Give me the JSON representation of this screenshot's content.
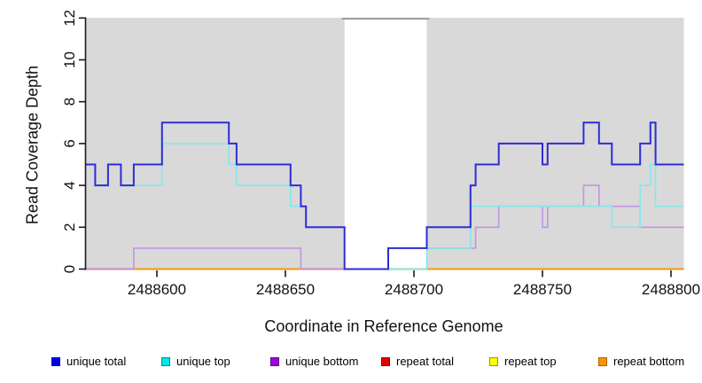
{
  "figure": {
    "y_axis_title": "Read Coverage Depth",
    "x_axis_title": "Coordinate in Reference Genome"
  },
  "legend": [
    {
      "label": "unique total",
      "fill": "#0000e6",
      "border": "#000099"
    },
    {
      "label": "unique top",
      "fill": "#00e6e6",
      "border": "#008b8b"
    },
    {
      "label": "unique bottom",
      "fill": "#a100d9",
      "border": "#60008a"
    },
    {
      "label": "repeat total",
      "fill": "#e60000",
      "border": "#8b0000"
    },
    {
      "label": "repeat top",
      "fill": "#ffff00",
      "border": "#9a9a00"
    },
    {
      "label": "repeat bottom",
      "fill": "#ff9300",
      "border": "#b36200"
    }
  ],
  "chart_data": {
    "type": "line",
    "subtype": "step-coverage-plot",
    "title": "",
    "xlabel": "Coordinate in Reference Genome",
    "ylabel": "Read Coverage Depth",
    "xlim": [
      2488572,
      2488805
    ],
    "ylim": [
      0,
      12
    ],
    "x_ticks": [
      2488600,
      2488650,
      2488700,
      2488750,
      2488800
    ],
    "y_ticks": [
      0,
      2,
      4,
      6,
      8,
      10,
      12
    ],
    "grid": false,
    "plot_bg_color": "#d9d9d9",
    "legend_position": "bottom",
    "series": [
      {
        "name": "unique total",
        "color": "#2d2dd6",
        "width": 2.0,
        "steps": [
          [
            2488572,
            2488576,
            5
          ],
          [
            2488576,
            2488581,
            4
          ],
          [
            2488581,
            2488586,
            5
          ],
          [
            2488586,
            2488591,
            4
          ],
          [
            2488591,
            2488602,
            5
          ],
          [
            2488602,
            2488628,
            7
          ],
          [
            2488628,
            2488631,
            6
          ],
          [
            2488631,
            2488652,
            5
          ],
          [
            2488652,
            2488656,
            4
          ],
          [
            2488656,
            2488658,
            3
          ],
          [
            2488658,
            2488673,
            2
          ],
          [
            2488673,
            2488690,
            0
          ],
          [
            2488690,
            2488705,
            1
          ],
          [
            2488705,
            2488722,
            2
          ],
          [
            2488722,
            2488724,
            4
          ],
          [
            2488724,
            2488733,
            5
          ],
          [
            2488733,
            2488750,
            6
          ],
          [
            2488750,
            2488752,
            5
          ],
          [
            2488752,
            2488766,
            6
          ],
          [
            2488766,
            2488772,
            7
          ],
          [
            2488772,
            2488777,
            6
          ],
          [
            2488777,
            2488788,
            5
          ],
          [
            2488788,
            2488792,
            6
          ],
          [
            2488792,
            2488794,
            7
          ],
          [
            2488794,
            2488805,
            5
          ]
        ]
      },
      {
        "name": "unique top",
        "color": "#82e9ec",
        "width": 1.6,
        "steps": [
          [
            2488572,
            2488576,
            5
          ],
          [
            2488576,
            2488581,
            4
          ],
          [
            2488581,
            2488586,
            5
          ],
          [
            2488586,
            2488591,
            4
          ],
          [
            2488591,
            2488602,
            4
          ],
          [
            2488602,
            2488628,
            6
          ],
          [
            2488628,
            2488631,
            5
          ],
          [
            2488631,
            2488652,
            4
          ],
          [
            2488652,
            2488658,
            3
          ],
          [
            2488658,
            2488673,
            2
          ],
          [
            2488673,
            2488705,
            0
          ],
          [
            2488705,
            2488722,
            1
          ],
          [
            2488722,
            2488777,
            3
          ],
          [
            2488777,
            2488788,
            2
          ],
          [
            2488788,
            2488792,
            4
          ],
          [
            2488792,
            2488794,
            5
          ],
          [
            2488794,
            2488805,
            3
          ]
        ]
      },
      {
        "name": "unique bottom",
        "color": "#c493e2",
        "width": 1.6,
        "steps": [
          [
            2488572,
            2488591,
            0
          ],
          [
            2488591,
            2488656,
            1
          ],
          [
            2488656,
            2488690,
            0
          ],
          [
            2488690,
            2488724,
            1
          ],
          [
            2488724,
            2488733,
            2
          ],
          [
            2488733,
            2488750,
            3
          ],
          [
            2488750,
            2488752,
            2
          ],
          [
            2488752,
            2488766,
            3
          ],
          [
            2488766,
            2488772,
            4
          ],
          [
            2488772,
            2488788,
            3
          ],
          [
            2488788,
            2488805,
            2
          ]
        ]
      },
      {
        "name": "repeat total",
        "color": "#e60000",
        "width": 1.6,
        "steps": [
          [
            2488572,
            2488805,
            0
          ]
        ]
      },
      {
        "name": "repeat top",
        "color": "#ffff00",
        "width": 1.6,
        "steps": [
          [
            2488572,
            2488805,
            0
          ]
        ]
      },
      {
        "name": "repeat bottom",
        "color": "#ff9300",
        "width": 1.8,
        "steps": [
          [
            2488572,
            2488805,
            0
          ]
        ]
      }
    ],
    "uncovered_band": {
      "x_start": 2488673,
      "x_end": 2488705,
      "fill": "#ffffff",
      "top_line_color": "#999999",
      "top_line_value": 12
    },
    "zero_line_blend_segments": [
      {
        "x_start": 2488572,
        "x_end": 2488591,
        "color": "#c75390"
      },
      {
        "x_start": 2488656,
        "x_end": 2488673,
        "color": "#c75390"
      },
      {
        "x_start": 2488690,
        "x_end": 2488705,
        "color": "#70bd70"
      }
    ]
  }
}
